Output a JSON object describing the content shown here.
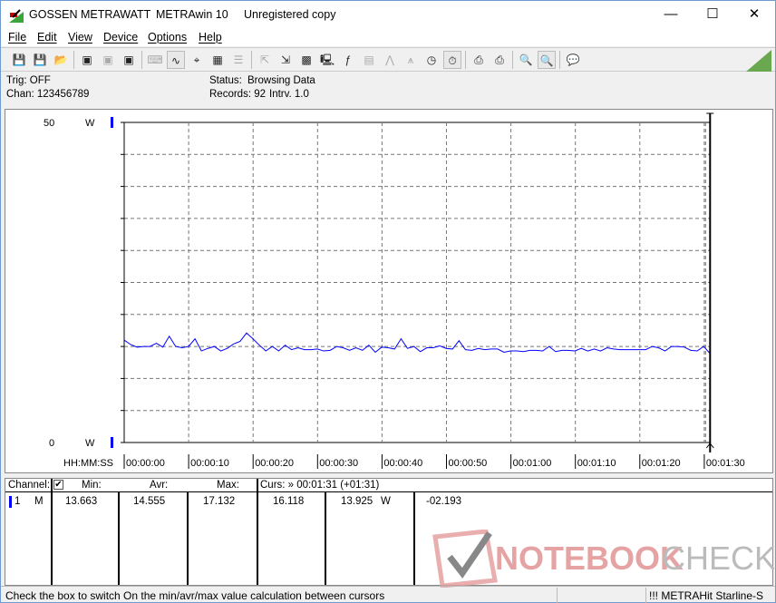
{
  "window": {
    "brand": "GOSSEN METRAWATT",
    "app": "METRAwin 10",
    "license": "Unregistered copy",
    "minimize": "—",
    "maximize": "☐",
    "close": "✕"
  },
  "menu": [
    "File",
    "Edit",
    "View",
    "Device",
    "Options",
    "Help"
  ],
  "toolbar": [
    {
      "icon": "save-icon",
      "g": "💾"
    },
    {
      "icon": "save-as-icon",
      "g": "💾"
    },
    {
      "icon": "open-folder-icon",
      "g": "📂"
    },
    {
      "sep": true
    },
    {
      "icon": "device-read-icon",
      "g": "▣"
    },
    {
      "icon": "device-config-icon",
      "g": "▣",
      "dis": true
    },
    {
      "icon": "device-memory-icon",
      "g": "▣"
    },
    {
      "sep": true
    },
    {
      "icon": "keyboard-icon",
      "g": "⌨",
      "dis": true
    },
    {
      "icon": "waveform-view-icon",
      "g": "∿",
      "on": true
    },
    {
      "icon": "crosshair-icon",
      "g": "⌖"
    },
    {
      "icon": "table-view-icon",
      "g": "▦"
    },
    {
      "icon": "list-view-icon",
      "g": "☰",
      "dis": true
    },
    {
      "sep": true
    },
    {
      "icon": "export-icon",
      "g": "⇱",
      "dis": true
    },
    {
      "icon": "import-icon",
      "g": "⇲"
    },
    {
      "icon": "data-grid-icon",
      "g": "▩"
    },
    {
      "icon": "monitor-icon",
      "g": "🖳"
    },
    {
      "icon": "function-icon",
      "g": "ƒ"
    },
    {
      "icon": "display-icon",
      "g": "▤",
      "dis": true
    },
    {
      "icon": "trigger-icon",
      "g": "⋀",
      "dis": true
    },
    {
      "icon": "sampling-icon",
      "g": "⩚",
      "dis": true
    },
    {
      "icon": "clock-icon",
      "g": "◷"
    },
    {
      "icon": "timer-icon",
      "g": "⏱",
      "on": true
    },
    {
      "sep": true
    },
    {
      "icon": "print-icon",
      "g": "⎙"
    },
    {
      "icon": "print-setup-icon",
      "g": "⎙"
    },
    {
      "sep": true
    },
    {
      "icon": "zoom-waveform-icon",
      "g": "🔍"
    },
    {
      "icon": "zoom-fit-icon",
      "g": "🔍",
      "on": true
    },
    {
      "sep": true
    },
    {
      "icon": "comment-icon",
      "g": "💬"
    }
  ],
  "info": {
    "trig": "Trig: OFF",
    "chan": "Chan:  123456789",
    "status_label": "Status:",
    "status_value": "Browsing Data",
    "records": "Records: 92",
    "interval": "Intrv. 1.0"
  },
  "chart_data": {
    "type": "line",
    "xlabel": "HH:MM:SS",
    "y_unit": "W",
    "ylim": [
      0,
      50
    ],
    "xlim": [
      0,
      91
    ],
    "y_tick_labels": [
      "50",
      "0"
    ],
    "x_tick_labels": [
      "00:00:00",
      "00:00:10",
      "00:00:20",
      "00:00:30",
      "00:00:40",
      "00:00:50",
      "00:01:00",
      "00:01:10",
      "00:01:20",
      "00:01:30"
    ],
    "grid": true,
    "line_color": "#0000ff",
    "cursor_x": 91,
    "values": [
      16.0,
      15.3,
      14.9,
      15.0,
      15.0,
      15.5,
      14.9,
      16.6,
      15.0,
      14.8,
      15.0,
      16.2,
      14.3,
      14.7,
      15.0,
      14.3,
      14.7,
      15.4,
      15.8,
      17.1,
      16.2,
      15.2,
      14.3,
      15.0,
      14.3,
      15.2,
      14.5,
      14.8,
      14.5,
      14.5,
      14.6,
      14.3,
      14.4,
      15.0,
      14.8,
      14.4,
      14.8,
      14.4,
      15.2,
      14.1,
      14.9,
      14.8,
      14.6,
      16.2,
      14.7,
      15.0,
      14.2,
      14.8,
      14.8,
      15.1,
      14.7,
      14.6,
      15.9,
      14.5,
      14.4,
      14.7,
      14.5,
      14.6,
      14.6,
      14.1,
      14.3,
      14.3,
      14.2,
      14.4,
      14.4,
      14.3,
      15.0,
      14.2,
      14.4,
      14.4,
      14.3,
      14.7,
      14.3,
      14.6,
      14.3,
      14.8,
      14.6,
      14.5,
      14.5,
      14.5,
      14.5,
      14.5,
      15.0,
      14.8,
      14.3,
      15.0,
      15.0,
      14.9,
      14.4,
      14.3,
      15.0,
      13.9
    ]
  },
  "table": {
    "h_channel": "Channel:",
    "h_min": "Min:",
    "h_avr": "Avr:",
    "h_max": "Max:",
    "h_curs": "Curs: » 00:01:31 (+01:31)",
    "row": {
      "num": "1",
      "mode": "M",
      "min": "13.663",
      "avr": "14.555",
      "max": "17.132",
      "c1": "16.118",
      "c2": "13.925",
      "unit": "W",
      "diff": "-02.193"
    }
  },
  "watermark": "NOTEBOOKCHECK",
  "status": {
    "hint": "Check the box to switch On the min/avr/max value calculation between cursors",
    "device": "!!! METRAHit Starline-S"
  }
}
